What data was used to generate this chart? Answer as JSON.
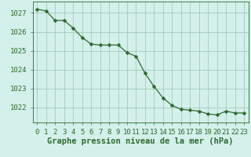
{
  "x": [
    0,
    1,
    2,
    3,
    4,
    5,
    6,
    7,
    8,
    9,
    10,
    11,
    12,
    13,
    14,
    15,
    16,
    17,
    18,
    19,
    20,
    21,
    22,
    23
  ],
  "y": [
    1027.2,
    1027.1,
    1026.6,
    1026.6,
    1026.2,
    1025.7,
    1025.35,
    1025.3,
    1025.3,
    1025.3,
    1024.9,
    1024.7,
    1023.8,
    1023.1,
    1022.5,
    1022.1,
    1021.9,
    1021.85,
    1021.8,
    1021.65,
    1021.6,
    1021.8,
    1021.7,
    1021.7
  ],
  "line_color": "#2d6a2d",
  "marker": "D",
  "marker_size": 2.5,
  "background_color": "#d4f0eb",
  "grid_color": "#a0ccbb",
  "xlabel": "Graphe pression niveau de la mer (hPa)",
  "xlabel_fontsize": 7.5,
  "tick_fontsize": 6.5,
  "yticks": [
    1022,
    1023,
    1024,
    1025,
    1026,
    1027
  ],
  "ylim": [
    1021.2,
    1027.6
  ],
  "xlim": [
    -0.5,
    23.5
  ]
}
